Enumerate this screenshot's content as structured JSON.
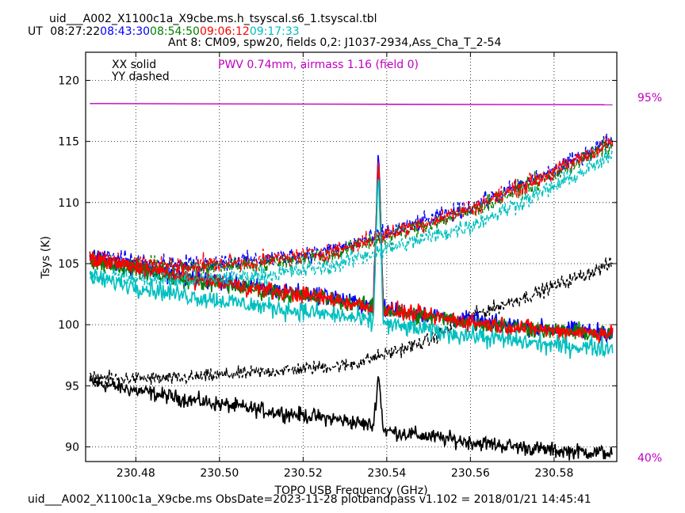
{
  "header": {
    "filename": "uid___A002_X1100c1a_X9cbe.ms.h_tsyscal.s6_1.tsyscal.tbl",
    "ut_prefix": "UT",
    "times": [
      {
        "label": "08:27:22",
        "color": "#000000"
      },
      {
        "label": "08:43:30",
        "color": "#0000ff"
      },
      {
        "label": "08:54:50",
        "color": "#008000"
      },
      {
        "label": "09:06:12",
        "color": "#ff0000"
      },
      {
        "label": "09:17:33",
        "color": "#00bfbf"
      }
    ],
    "subtitle": "Ant 8: CM09,  spw20,  fields 0,2: J1037-2934,Ass_Cha_T_2-54"
  },
  "legend": {
    "line1": "XX solid",
    "line2": "YY dashed"
  },
  "pwv_text": "PWV 0.74mm, airmass 1.16 (field 0)",
  "right_labels": {
    "top": "95%",
    "bottom": "40%"
  },
  "footer": "uid___A002_X1100c1a_X9cbe.ms  ObsDate=2023-11-28   plotbandpass v1.102 = 2018/01/21 14:45:41",
  "colors": {
    "pwv": "#bf00bf"
  },
  "chart_data": {
    "type": "line",
    "xlabel": "TOPO USB Frequency (GHz)",
    "ylabel": "Tsys (K)",
    "xlim": [
      230.468,
      230.595
    ],
    "ylim": [
      88.8,
      122.3
    ],
    "xticks": [
      230.48,
      230.5,
      230.52,
      230.54,
      230.56,
      230.58
    ],
    "xtick_labels": [
      "230.48",
      "230.50",
      "230.52",
      "230.54",
      "230.56",
      "230.58"
    ],
    "yticks": [
      90,
      95,
      100,
      105,
      110,
      115,
      120
    ],
    "ytick_labels": [
      "90",
      "95",
      "100",
      "105",
      "110",
      "115",
      "120"
    ],
    "grid": true,
    "spike_x": 230.538,
    "gap": [
      230.527,
      230.531
    ],
    "transmission_line": {
      "color": "#bf00bf",
      "x": [
        230.469,
        230.594
      ],
      "y": [
        118.1,
        118.0
      ]
    },
    "series": [
      {
        "color": "#000000",
        "style": "solid",
        "noise": 0.45,
        "x": [
          230.469,
          230.49,
          230.51,
          230.527,
          230.531,
          230.537,
          230.54,
          230.56,
          230.58,
          230.594
        ],
        "y": [
          95.3,
          94.0,
          93.0,
          92.3,
          92.1,
          91.7,
          91.3,
          90.4,
          89.7,
          89.5
        ],
        "spike_peak": 96.0
      },
      {
        "color": "#000000",
        "style": "dashed",
        "noise": 0.4,
        "x": [
          230.469,
          230.49,
          230.51,
          230.527,
          230.531,
          230.54,
          230.55,
          230.56,
          230.575,
          230.594
        ],
        "y": [
          95.6,
          95.6,
          96.1,
          96.6,
          96.7,
          97.6,
          98.7,
          100.7,
          102.5,
          105.0
        ]
      },
      {
        "color": "#0000ff",
        "style": "solid",
        "noise": 0.5,
        "x": [
          230.469,
          230.49,
          230.51,
          230.527,
          230.531,
          230.54,
          230.56,
          230.58,
          230.594
        ],
        "y": [
          105.6,
          104.0,
          103.0,
          102.3,
          101.9,
          101.3,
          100.3,
          99.6,
          99.4
        ],
        "spike_peak": 114.5
      },
      {
        "color": "#0000ff",
        "style": "dashed",
        "noise": 0.5,
        "x": [
          230.469,
          230.49,
          230.51,
          230.527,
          230.531,
          230.54,
          230.56,
          230.58,
          230.594
        ],
        "y": [
          105.6,
          104.9,
          105.3,
          106.1,
          106.5,
          107.5,
          109.6,
          112.6,
          115.2
        ]
      },
      {
        "color": "#008000",
        "style": "solid",
        "noise": 0.5,
        "x": [
          230.469,
          230.49,
          230.51,
          230.527,
          230.531,
          230.54,
          230.56,
          230.58,
          230.594
        ],
        "y": [
          105.3,
          103.8,
          102.8,
          102.1,
          101.8,
          101.1,
          100.2,
          99.5,
          99.2
        ],
        "spike_peak": 114.0
      },
      {
        "color": "#008000",
        "style": "dashed",
        "noise": 0.5,
        "x": [
          230.469,
          230.49,
          230.51,
          230.527,
          230.531,
          230.54,
          230.56,
          230.58,
          230.594
        ],
        "y": [
          105.2,
          104.6,
          105.0,
          105.8,
          106.2,
          107.2,
          109.3,
          112.3,
          114.8
        ]
      },
      {
        "color": "#ff0000",
        "style": "solid",
        "noise": 0.5,
        "x": [
          230.469,
          230.49,
          230.51,
          230.527,
          230.531,
          230.54,
          230.56,
          230.58,
          230.594
        ],
        "y": [
          105.4,
          104.0,
          102.9,
          102.1,
          101.8,
          101.2,
          100.2,
          99.5,
          99.3
        ],
        "spike_peak": 113.5
      },
      {
        "color": "#ff0000",
        "style": "dashed",
        "noise": 0.5,
        "x": [
          230.469,
          230.49,
          230.51,
          230.527,
          230.531,
          230.54,
          230.56,
          230.58,
          230.594
        ],
        "y": [
          105.4,
          104.8,
          105.2,
          106.0,
          106.4,
          107.4,
          109.5,
          112.5,
          115.0
        ]
      },
      {
        "color": "#00bfbf",
        "style": "solid",
        "noise": 0.55,
        "x": [
          230.469,
          230.49,
          230.51,
          230.527,
          230.531,
          230.54,
          230.56,
          230.58,
          230.594
        ],
        "y": [
          103.9,
          102.5,
          101.5,
          100.8,
          100.6,
          100.0,
          99.1,
          98.3,
          98.1
        ],
        "spike_peak": 113.0
      },
      {
        "color": "#00bfbf",
        "style": "dashed",
        "noise": 0.5,
        "x": [
          230.469,
          230.49,
          230.51,
          230.527,
          230.531,
          230.54,
          230.56,
          230.58,
          230.594
        ],
        "y": [
          104.0,
          103.6,
          104.0,
          104.8,
          105.3,
          106.2,
          108.1,
          111.3,
          113.8
        ]
      }
    ]
  }
}
